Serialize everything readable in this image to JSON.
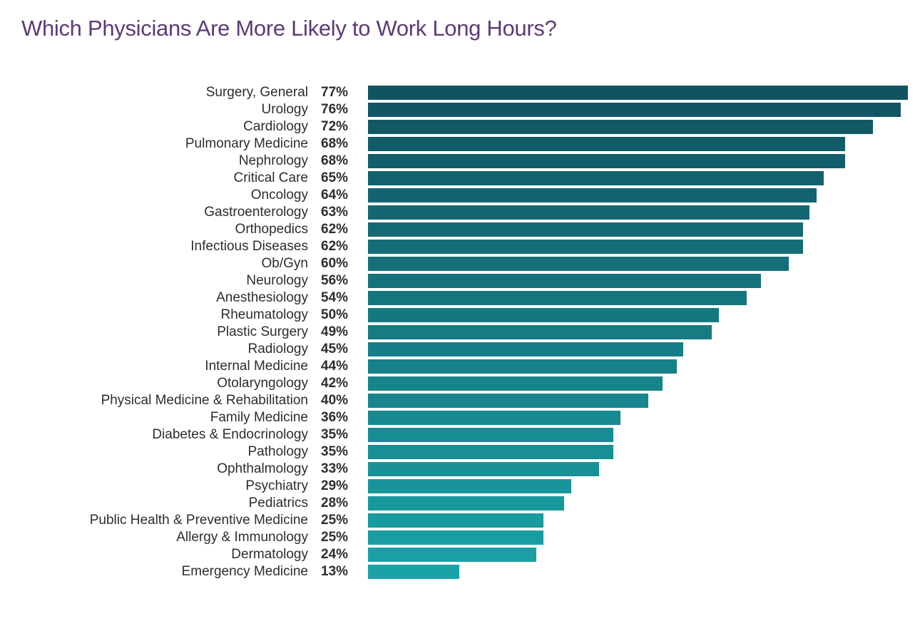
{
  "title": "Which Physicians Are More Likely to Work Long Hours?",
  "colors": {
    "title_text": "#5C3B76",
    "label_text": "#2D2D2D",
    "bar_gradient_top": "#115360",
    "bar_gradient_bottom": "#1AA3A6",
    "background": "#FFFFFF"
  },
  "chart_data": {
    "type": "bar",
    "orientation": "horizontal",
    "title": "Which Physicians Are More Likely to Work Long Hours?",
    "xlabel": "",
    "ylabel": "",
    "value_suffix": "%",
    "xlim": [
      0,
      77
    ],
    "grid": false,
    "legend": false,
    "categories": [
      "Surgery, General",
      "Urology",
      "Cardiology",
      "Pulmonary Medicine",
      "Nephrology",
      "Critical Care",
      "Oncology",
      "Gastroenterology",
      "Orthopedics",
      "Infectious Diseases",
      "Ob/Gyn",
      "Neurology",
      "Anesthesiology",
      "Rheumatology",
      "Plastic Surgery",
      "Radiology",
      "Internal Medicine",
      "Otolaryngology",
      "Physical Medicine & Rehabilitation",
      "Family Medicine",
      "Diabetes & Endocrinology",
      "Pathology",
      "Ophthalmology",
      "Psychiatry",
      "Pediatrics",
      "Public Health & Preventive Medicine",
      "Allergy & Immunology",
      "Dermatology",
      "Emergency Medicine"
    ],
    "values": [
      77,
      76,
      72,
      68,
      68,
      65,
      64,
      63,
      62,
      62,
      60,
      56,
      54,
      50,
      49,
      45,
      44,
      42,
      40,
      36,
      35,
      35,
      33,
      29,
      28,
      25,
      25,
      24,
      13
    ]
  }
}
